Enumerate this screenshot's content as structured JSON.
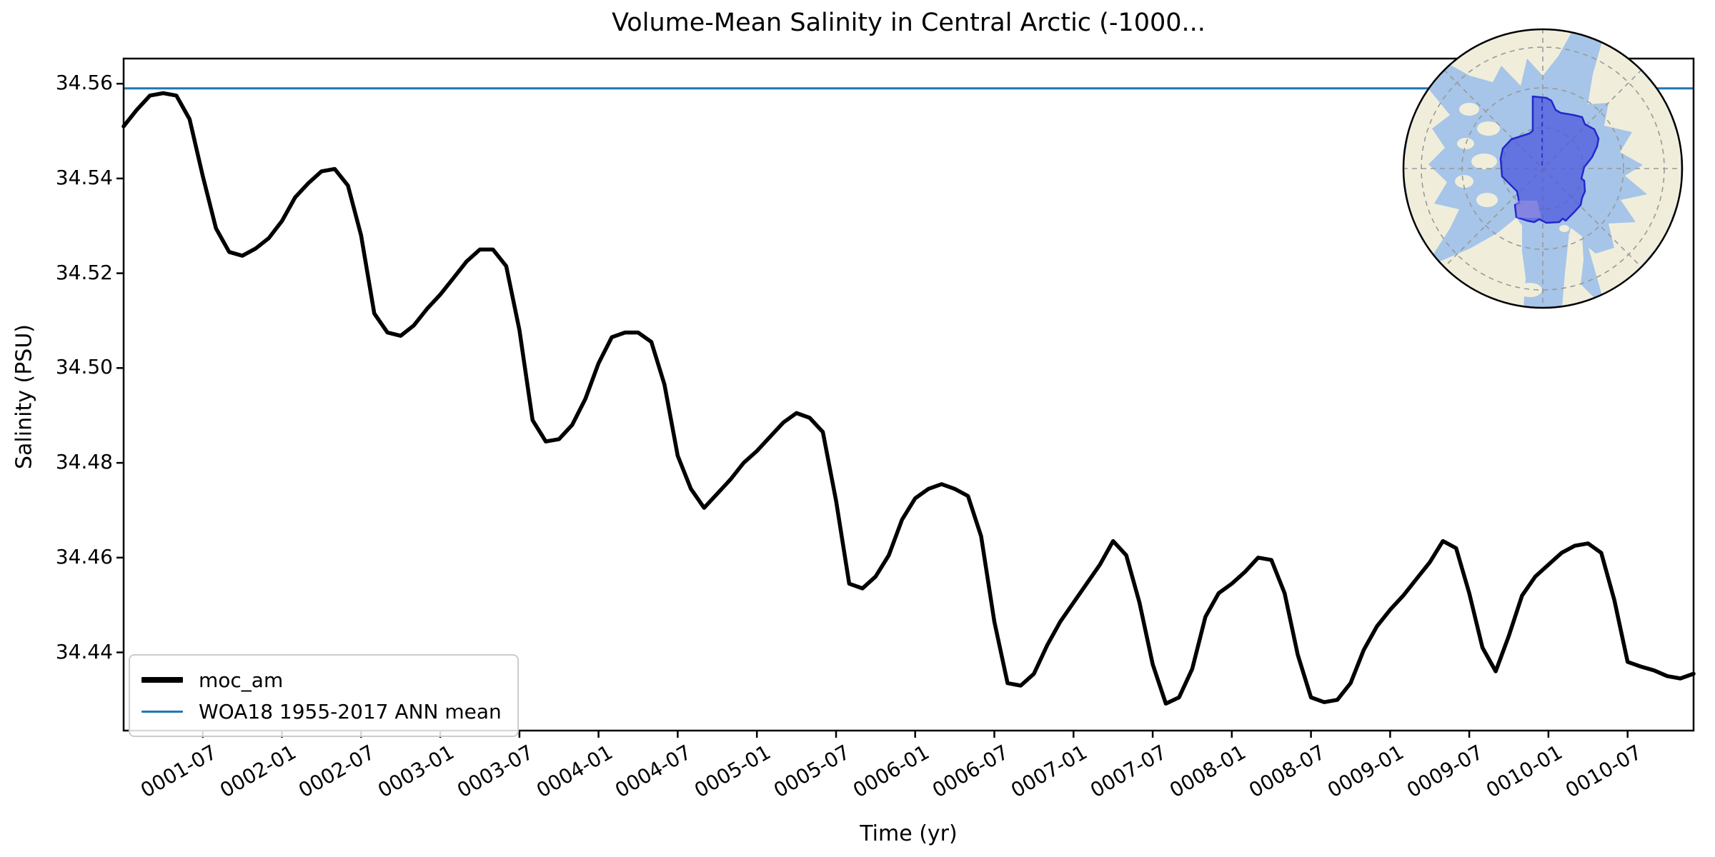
{
  "title": "Volume-Mean Salinity in Central Arctic (-1000...",
  "axes": {
    "xlabel": "Time (yr)",
    "ylabel": "Salinity (PSU)"
  },
  "legend": [
    {
      "label": "moc_am",
      "color": "#000000",
      "line_weight": 8
    },
    {
      "label": "WOA18 1955-2017 ANN mean",
      "color": "#1f77b4",
      "line_weight": 3
    }
  ],
  "colors": {
    "moc_line": "#000000",
    "woa_line": "#1f77b4",
    "spine": "#000000",
    "map_ocean": "#a6c5e8",
    "map_land": "#f0eedb",
    "map_region_fill": "#4a55dd",
    "map_region_edge": "#2228cc",
    "map_region_patch": "#a193e0",
    "map_graticule": "#999999",
    "map_outline": "#000000"
  },
  "chart_data": {
    "type": "line",
    "title": "Volume-Mean Salinity in Central Arctic (-1000...",
    "xlabel": "Time (yr)",
    "ylabel": "Salinity (PSU)",
    "grid": false,
    "legend_position": "lower left",
    "xlim_months": [
      0,
      119
    ],
    "ylim": [
      34.4235,
      34.5653
    ],
    "y_ticks": [
      {
        "value": 34.56,
        "label": "34.56"
      },
      {
        "value": 34.54,
        "label": "34.54"
      },
      {
        "value": 34.52,
        "label": "34.52"
      },
      {
        "value": 34.5,
        "label": "34.50"
      },
      {
        "value": 34.48,
        "label": "34.48"
      },
      {
        "value": 34.46,
        "label": "34.46"
      },
      {
        "value": 34.44,
        "label": "34.44"
      }
    ],
    "x_ticks": [
      {
        "month_index": 6,
        "label": "0001-07"
      },
      {
        "month_index": 12,
        "label": "0002-01"
      },
      {
        "month_index": 18,
        "label": "0002-07"
      },
      {
        "month_index": 24,
        "label": "0003-01"
      },
      {
        "month_index": 30,
        "label": "0003-07"
      },
      {
        "month_index": 36,
        "label": "0004-01"
      },
      {
        "month_index": 42,
        "label": "0004-07"
      },
      {
        "month_index": 48,
        "label": "0005-01"
      },
      {
        "month_index": 54,
        "label": "0005-07"
      },
      {
        "month_index": 60,
        "label": "0006-01"
      },
      {
        "month_index": 66,
        "label": "0006-07"
      },
      {
        "month_index": 72,
        "label": "0007-01"
      },
      {
        "month_index": 78,
        "label": "0007-07"
      },
      {
        "month_index": 84,
        "label": "0008-01"
      },
      {
        "month_index": 90,
        "label": "0008-07"
      },
      {
        "month_index": 96,
        "label": "0009-01"
      },
      {
        "month_index": 102,
        "label": "0009-07"
      },
      {
        "month_index": 108,
        "label": "0010-01"
      },
      {
        "month_index": 114,
        "label": "0010-07"
      }
    ],
    "x": [
      "0001-01",
      "0001-02",
      "0001-03",
      "0001-04",
      "0001-05",
      "0001-06",
      "0001-07",
      "0001-08",
      "0001-09",
      "0001-10",
      "0001-11",
      "0001-12",
      "0002-01",
      "0002-02",
      "0002-03",
      "0002-04",
      "0002-05",
      "0002-06",
      "0002-07",
      "0002-08",
      "0002-09",
      "0002-10",
      "0002-11",
      "0002-12",
      "0003-01",
      "0003-02",
      "0003-03",
      "0003-04",
      "0003-05",
      "0003-06",
      "0003-07",
      "0003-08",
      "0003-09",
      "0003-10",
      "0003-11",
      "0003-12",
      "0004-01",
      "0004-02",
      "0004-03",
      "0004-04",
      "0004-05",
      "0004-06",
      "0004-07",
      "0004-08",
      "0004-09",
      "0004-10",
      "0004-11",
      "0004-12",
      "0005-01",
      "0005-02",
      "0005-03",
      "0005-04",
      "0005-05",
      "0005-06",
      "0005-07",
      "0005-08",
      "0005-09",
      "0005-10",
      "0005-11",
      "0005-12",
      "0006-01",
      "0006-02",
      "0006-03",
      "0006-04",
      "0006-05",
      "0006-06",
      "0006-07",
      "0006-08",
      "0006-09",
      "0006-10",
      "0006-11",
      "0006-12",
      "0007-01",
      "0007-02",
      "0007-03",
      "0007-04",
      "0007-05",
      "0007-06",
      "0007-07",
      "0007-08",
      "0007-09",
      "0007-10",
      "0007-11",
      "0007-12",
      "0008-01",
      "0008-02",
      "0008-03",
      "0008-04",
      "0008-05",
      "0008-06",
      "0008-07",
      "0008-08",
      "0008-09",
      "0008-10",
      "0008-11",
      "0008-12",
      "0009-01",
      "0009-02",
      "0009-03",
      "0009-04",
      "0009-05",
      "0009-06",
      "0009-07",
      "0009-08",
      "0009-09",
      "0009-10",
      "0009-11",
      "0009-12",
      "0010-01",
      "0010-02",
      "0010-03",
      "0010-04",
      "0010-05",
      "0010-06",
      "0010-07",
      "0010-08",
      "0010-09",
      "0010-10",
      "0010-11",
      "0010-12"
    ],
    "series": [
      {
        "name": "moc_am",
        "color": "#000000",
        "values": [
          34.551,
          34.5545,
          34.5575,
          34.558,
          34.5575,
          34.5525,
          34.5405,
          34.5295,
          34.5245,
          34.5237,
          34.5252,
          34.5274,
          34.531,
          34.536,
          34.539,
          34.5415,
          34.542,
          34.5385,
          34.528,
          34.5115,
          34.5075,
          34.5068,
          34.509,
          34.5125,
          34.5155,
          34.519,
          34.5225,
          34.525,
          34.525,
          34.5215,
          34.508,
          34.489,
          34.4845,
          34.485,
          34.488,
          34.4935,
          34.501,
          34.5065,
          34.5075,
          34.5075,
          34.5055,
          34.4965,
          34.4815,
          34.4745,
          34.4705,
          34.4735,
          34.4765,
          34.48,
          34.4825,
          34.4855,
          34.4885,
          34.4905,
          34.4895,
          34.4865,
          34.472,
          34.4545,
          34.4535,
          34.456,
          34.4605,
          34.468,
          34.4725,
          34.4745,
          34.4755,
          34.4745,
          34.473,
          34.4645,
          34.4465,
          34.4335,
          34.433,
          34.4355,
          34.4415,
          34.4465,
          34.4505,
          34.4545,
          34.4585,
          34.4635,
          34.4605,
          34.4505,
          34.4375,
          34.4292,
          34.4305,
          34.4365,
          34.4475,
          34.4525,
          34.4545,
          34.457,
          34.46,
          34.4595,
          34.4525,
          34.4395,
          34.4305,
          34.4295,
          34.43,
          34.4335,
          34.4405,
          34.4455,
          34.449,
          34.452,
          34.4555,
          34.459,
          34.4635,
          34.462,
          34.4525,
          34.441,
          34.436,
          34.4435,
          34.452,
          34.456,
          34.4585,
          34.461,
          34.4625,
          34.463,
          34.461,
          34.451,
          34.438,
          34.437,
          34.4362,
          34.435,
          34.4345,
          34.4355
        ]
      },
      {
        "name": "WOA18 1955-2017 ANN mean",
        "color": "#1f77b4",
        "style": "horizontal-reference-line",
        "value": 34.559
      }
    ],
    "inset": {
      "description": "North polar stereographic map with Central Arctic region highlighted",
      "position": "upper right"
    }
  }
}
